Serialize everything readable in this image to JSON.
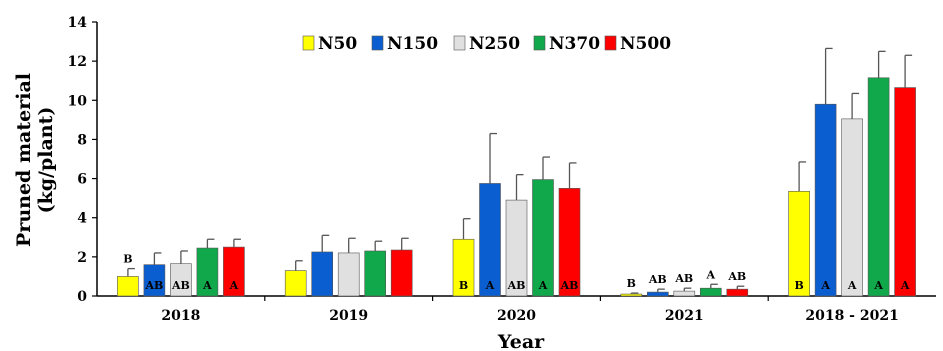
{
  "chart_data": {
    "type": "bar",
    "categories": [
      "2018",
      "2019",
      "2020",
      "2021",
      "2018 - 2021"
    ],
    "series": [
      {
        "name": "N50",
        "color": "#ffff00",
        "values": [
          1.0,
          1.3,
          2.9,
          0.1,
          5.35
        ],
        "errors": [
          0.4,
          0.5,
          1.05,
          0.05,
          1.5
        ],
        "inside_labels": [
          "",
          "",
          "B",
          "",
          "B"
        ],
        "above_labels": [
          "B",
          "",
          "",
          "B",
          ""
        ]
      },
      {
        "name": "N150",
        "color": "#0b5ed0",
        "values": [
          1.6,
          2.25,
          5.75,
          0.2,
          9.8
        ],
        "errors": [
          0.6,
          0.85,
          2.55,
          0.15,
          2.85
        ],
        "inside_labels": [
          "AB",
          "",
          "A",
          "",
          "A"
        ],
        "above_labels": [
          "",
          "",
          "",
          "AB",
          ""
        ]
      },
      {
        "name": "N250",
        "color": "#e0e0e0",
        "values": [
          1.65,
          2.2,
          4.9,
          0.25,
          9.05
        ],
        "errors": [
          0.65,
          0.75,
          1.3,
          0.15,
          1.3
        ],
        "inside_labels": [
          "AB",
          "",
          "AB",
          "",
          "A"
        ],
        "above_labels": [
          "",
          "",
          "",
          "AB",
          ""
        ]
      },
      {
        "name": "N370",
        "color": "#10a84a",
        "values": [
          2.45,
          2.3,
          5.95,
          0.4,
          11.15
        ],
        "errors": [
          0.45,
          0.5,
          1.15,
          0.2,
          1.35
        ],
        "inside_labels": [
          "A",
          "",
          "A",
          "",
          "A"
        ],
        "above_labels": [
          "",
          "",
          "",
          "A",
          ""
        ]
      },
      {
        "name": "N500",
        "color": "#ff0000",
        "values": [
          2.5,
          2.35,
          5.5,
          0.35,
          10.65
        ],
        "errors": [
          0.4,
          0.6,
          1.3,
          0.15,
          1.65
        ],
        "inside_labels": [
          "A",
          "",
          "AB",
          "",
          "A"
        ],
        "above_labels": [
          "",
          "",
          "",
          "AB",
          ""
        ]
      }
    ],
    "xlabel": "Year",
    "ylabel": [
      "Pruned material",
      "(kg/plant)"
    ],
    "ylim": [
      0,
      14
    ],
    "yticks": [
      0,
      2,
      4,
      6,
      8,
      10,
      12,
      14
    ],
    "legend_position": "top-center",
    "grid": false
  }
}
